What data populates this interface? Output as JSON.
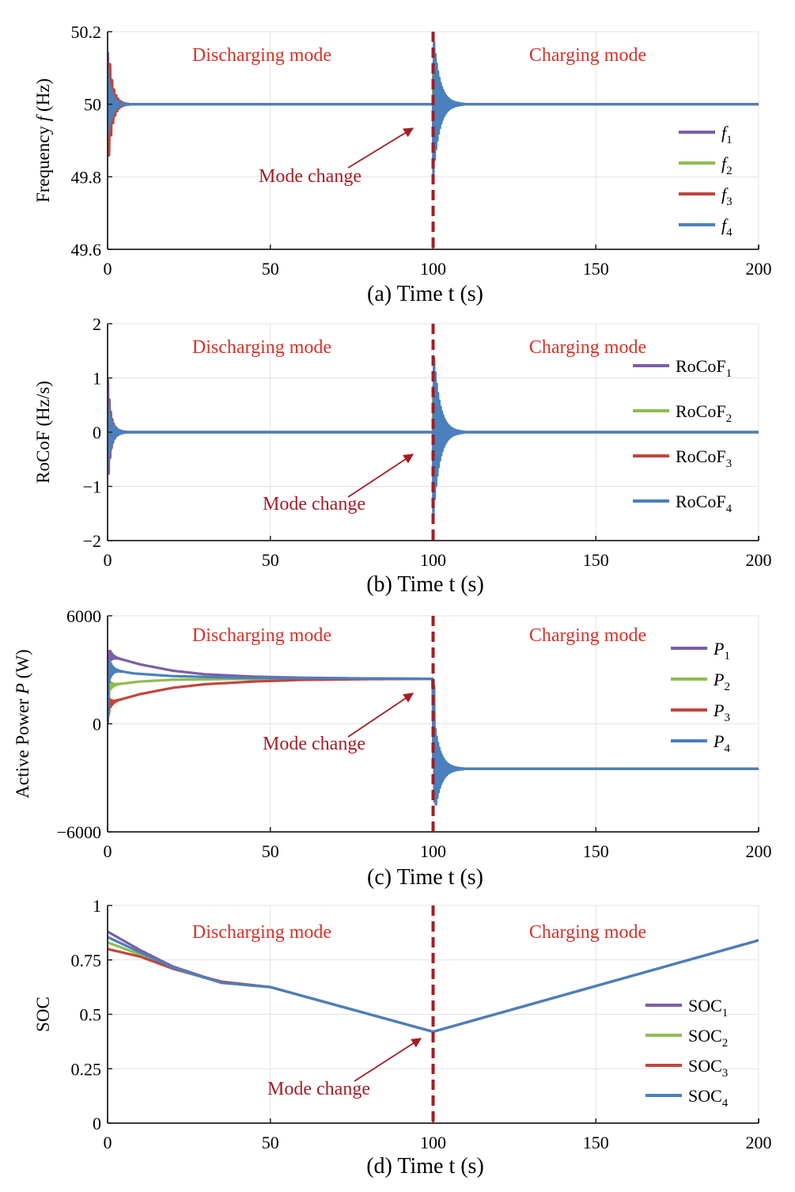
{
  "colors": {
    "series": [
      "#7b5ea7",
      "#8fbb50",
      "#c0463e",
      "#4a80bd"
    ],
    "mode_text": "#d93027",
    "mode_change": "#a51c24",
    "divider": "#a51c24"
  },
  "chart_data": [
    {
      "id": "a",
      "type": "line",
      "title": "",
      "xlabel": "(a) Time t (s)",
      "ylabel": {
        "before": "Frequency ",
        "italic": "f",
        "after": " (Hz)"
      },
      "xlim": [
        0,
        200
      ],
      "ylim": [
        49.6,
        50.2
      ],
      "xticks": [
        0,
        50,
        100,
        150,
        200
      ],
      "xtick_labels": [
        "0",
        "50",
        "100",
        "150",
        "200"
      ],
      "yticks": [
        49.6,
        49.8,
        50,
        50.2
      ],
      "ytick_labels": [
        "49.6",
        "49.8",
        "50",
        "50.2"
      ],
      "grid": true,
      "mode_change_at": 100,
      "annotations": {
        "left": "Discharging mode",
        "right": "Charging mode",
        "arrow": "Mode change"
      },
      "legend": {
        "position": "right",
        "italic": true,
        "entries": [
          {
            "base": "f",
            "sub": "1"
          },
          {
            "base": "f",
            "sub": "2"
          },
          {
            "base": "f",
            "sub": "3"
          },
          {
            "base": "f",
            "sub": "4"
          }
        ]
      },
      "series": [
        {
          "name": "f1",
          "baseline": [
            [
              0,
              50
            ],
            [
              100,
              50
            ],
            [
              200,
              50
            ]
          ],
          "osc": [
            {
              "t0": 0,
              "dur": 3,
              "amp": 0.16,
              "freq": 2.2,
              "phase": 1
            },
            {
              "t0": 100,
              "dur": 5,
              "amp": 0.12,
              "freq": 2.5,
              "phase": 1
            }
          ]
        },
        {
          "name": "f2",
          "baseline": [
            [
              0,
              50
            ],
            [
              100,
              50
            ],
            [
              200,
              50
            ]
          ],
          "osc": [
            {
              "t0": 0,
              "dur": 3,
              "amp": 0.1,
              "freq": 2.0,
              "phase": 1
            },
            {
              "t0": 100,
              "dur": 5,
              "amp": 0.1,
              "freq": 2.5,
              "phase": 1
            }
          ]
        },
        {
          "name": "f3",
          "baseline": [
            [
              0,
              50
            ],
            [
              100,
              50
            ],
            [
              200,
              50
            ]
          ],
          "osc": [
            {
              "t0": 0.3,
              "dur": 4,
              "amp": 0.16,
              "freq": 1.6,
              "phase": -1
            },
            {
              "t0": 100,
              "dur": 5,
              "amp": 0.12,
              "freq": 2.5,
              "phase": -1
            }
          ]
        },
        {
          "name": "f4",
          "baseline": [
            [
              0,
              50
            ],
            [
              100,
              50
            ],
            [
              200,
              50
            ]
          ],
          "osc": [
            {
              "t0": 0,
              "dur": 4,
              "amp": 0.1,
              "freq": 2.6,
              "phase": 1
            },
            {
              "t0": 100,
              "dur": 6,
              "amp": 0.2,
              "freq": 2.5,
              "phase": -1
            }
          ]
        }
      ]
    },
    {
      "id": "b",
      "type": "line",
      "title": "",
      "xlabel": "(b) Time t (s)",
      "ylabel": {
        "before": "RoCoF (Hz/s)",
        "italic": "",
        "after": ""
      },
      "xlim": [
        0,
        200
      ],
      "ylim": [
        -2,
        2
      ],
      "xticks": [
        0,
        50,
        100,
        150,
        200
      ],
      "xtick_labels": [
        "0",
        "50",
        "100",
        "150",
        "200"
      ],
      "yticks": [
        -2,
        -1,
        0,
        1,
        2
      ],
      "ytick_labels": [
        "−2",
        "−1",
        "0",
        "1",
        "2"
      ],
      "grid": true,
      "mode_change_at": 100,
      "annotations": {
        "left": "Discharging mode",
        "right": "Charging mode",
        "arrow": "Mode change"
      },
      "legend": {
        "position": "right",
        "italic": false,
        "entries": [
          {
            "base": "RoCoF",
            "sub": "1"
          },
          {
            "base": "RoCoF",
            "sub": "2"
          },
          {
            "base": "RoCoF",
            "sub": "3"
          },
          {
            "base": "RoCoF",
            "sub": "4"
          }
        ]
      },
      "series": [
        {
          "name": "RoCoF1",
          "baseline": [
            [
              0,
              0
            ],
            [
              100,
              0
            ],
            [
              200,
              0
            ]
          ],
          "osc": [
            {
              "t0": 0,
              "dur": 3,
              "amp": 1.1,
              "freq": 2.2,
              "phase": 1
            },
            {
              "t0": 100,
              "dur": 5,
              "amp": 0.9,
              "freq": 2.5,
              "phase": 1
            }
          ]
        },
        {
          "name": "RoCoF2",
          "baseline": [
            [
              0,
              0
            ],
            [
              100,
              0
            ],
            [
              200,
              0
            ]
          ],
          "osc": [
            {
              "t0": 0,
              "dur": 3,
              "amp": 0.5,
              "freq": 2.0,
              "phase": 1
            },
            {
              "t0": 100,
              "dur": 5,
              "amp": 0.7,
              "freq": 2.5,
              "phase": 1
            }
          ]
        },
        {
          "name": "RoCoF3",
          "baseline": [
            [
              0,
              0
            ],
            [
              100,
              0
            ],
            [
              200,
              0
            ]
          ],
          "osc": [
            {
              "t0": 0.2,
              "dur": 4,
              "amp": 0.6,
              "freq": 1.6,
              "phase": -1
            },
            {
              "t0": 100,
              "dur": 5,
              "amp": 0.8,
              "freq": 2.5,
              "phase": -1
            }
          ]
        },
        {
          "name": "RoCoF4",
          "baseline": [
            [
              0,
              0
            ],
            [
              100,
              0
            ],
            [
              200,
              0
            ]
          ],
          "osc": [
            {
              "t0": 0,
              "dur": 4,
              "amp": 0.6,
              "freq": 2.6,
              "phase": -1
            },
            {
              "t0": 100,
              "dur": 6,
              "amp": 1.6,
              "freq": 2.5,
              "phase": -1
            }
          ]
        }
      ]
    },
    {
      "id": "c",
      "type": "line",
      "title": "",
      "xlabel": "(c) Time t (s)",
      "ylabel": {
        "before": "Active Power ",
        "italic": "P",
        "after": " (W)"
      },
      "xlim": [
        0,
        200
      ],
      "ylim": [
        -6000,
        6000
      ],
      "xticks": [
        0,
        50,
        100,
        150,
        200
      ],
      "xtick_labels": [
        "0",
        "50",
        "100",
        "150",
        "200"
      ],
      "yticks": [
        -6000,
        0,
        6000
      ],
      "ytick_labels": [
        "−6000",
        "0",
        "6000"
      ],
      "grid": true,
      "mode_change_at": 100,
      "annotations": {
        "left": "Discharging mode",
        "right": "Charging mode",
        "arrow": "Mode change"
      },
      "legend": {
        "position": "right",
        "italic": true,
        "entries": [
          {
            "base": "P",
            "sub": "1"
          },
          {
            "base": "P",
            "sub": "2"
          },
          {
            "base": "P",
            "sub": "3"
          },
          {
            "base": "P",
            "sub": "4"
          }
        ]
      },
      "series": [
        {
          "name": "P1",
          "baseline": [
            [
              0,
              0
            ],
            [
              0.5,
              3800
            ],
            [
              2,
              3700
            ],
            [
              10,
              3300
            ],
            [
              20,
              2950
            ],
            [
              30,
              2750
            ],
            [
              45,
              2620
            ],
            [
              60,
              2560
            ],
            [
              80,
              2520
            ],
            [
              99.8,
              2500
            ],
            [
              100.6,
              -2500
            ],
            [
              200,
              -2500
            ]
          ],
          "osc": [
            {
              "t0": 0.3,
              "dur": 3,
              "amp": 500,
              "freq": 2.0,
              "phase": 1
            },
            {
              "t0": 100,
              "dur": 5,
              "amp": 3000,
              "freq": 2.5,
              "phase": -1
            }
          ]
        },
        {
          "name": "P2",
          "baseline": [
            [
              0,
              0
            ],
            [
              0.5,
              2100
            ],
            [
              3,
              2200
            ],
            [
              10,
              2350
            ],
            [
              20,
              2450
            ],
            [
              40,
              2490
            ],
            [
              99.8,
              2500
            ],
            [
              100.6,
              -2500
            ],
            [
              200,
              -2500
            ]
          ],
          "osc": [
            {
              "t0": 0.3,
              "dur": 3,
              "amp": 400,
              "freq": 2.0,
              "phase": -1
            },
            {
              "t0": 100,
              "dur": 5,
              "amp": 2600,
              "freq": 2.5,
              "phase": -1
            }
          ]
        },
        {
          "name": "P3",
          "baseline": [
            [
              0,
              0
            ],
            [
              0.5,
              1100
            ],
            [
              3,
              1300
            ],
            [
              10,
              1650
            ],
            [
              20,
              2000
            ],
            [
              30,
              2200
            ],
            [
              45,
              2350
            ],
            [
              60,
              2440
            ],
            [
              80,
              2480
            ],
            [
              99.8,
              2500
            ],
            [
              100.6,
              -2500
            ],
            [
              200,
              -2500
            ]
          ],
          "osc": [
            {
              "t0": 0.3,
              "dur": 3,
              "amp": 400,
              "freq": 1.8,
              "phase": -1
            },
            {
              "t0": 100,
              "dur": 5,
              "amp": 2800,
              "freq": 2.5,
              "phase": -1
            }
          ]
        },
        {
          "name": "P4",
          "baseline": [
            [
              0,
              0
            ],
            [
              0.5,
              3000
            ],
            [
              3,
              2950
            ],
            [
              8,
              2800
            ],
            [
              20,
              2650
            ],
            [
              40,
              2560
            ],
            [
              99.8,
              2500
            ],
            [
              100.6,
              -2500
            ],
            [
              200,
              -2500
            ]
          ],
          "osc": [
            {
              "t0": 0.2,
              "dur": 3,
              "amp": 900,
              "freq": 2.4,
              "phase": 1
            },
            {
              "t0": 100,
              "dur": 6,
              "amp": 3200,
              "freq": 2.5,
              "phase": -1
            }
          ]
        }
      ]
    },
    {
      "id": "d",
      "type": "line",
      "title": "",
      "xlabel": "(d) Time t (s)",
      "ylabel": {
        "before": "SOC",
        "italic": "",
        "after": ""
      },
      "xlim": [
        0,
        200
      ],
      "ylim": [
        0,
        1
      ],
      "xticks": [
        0,
        50,
        100,
        150,
        200
      ],
      "xtick_labels": [
        "0",
        "50",
        "100",
        "150",
        "200"
      ],
      "yticks": [
        0,
        0.25,
        0.5,
        0.75,
        1
      ],
      "ytick_labels": [
        "0",
        "0.25",
        "0.5",
        "0.75",
        "1"
      ],
      "grid": true,
      "mode_change_at": 100,
      "annotations": {
        "left": "Discharging mode",
        "right": "Charging mode",
        "arrow": "Mode change"
      },
      "legend": {
        "position": "right",
        "italic": false,
        "entries": [
          {
            "base": "SOC",
            "sub": "1"
          },
          {
            "base": "SOC",
            "sub": "2"
          },
          {
            "base": "SOC",
            "sub": "3"
          },
          {
            "base": "SOC",
            "sub": "4"
          }
        ]
      },
      "series": [
        {
          "name": "SOC1",
          "baseline": [
            [
              0,
              0.88
            ],
            [
              10,
              0.795
            ],
            [
              20,
              0.72
            ],
            [
              35,
              0.645
            ],
            [
              50,
              0.625
            ],
            [
              100,
              0.42
            ],
            [
              200,
              0.84
            ]
          ],
          "osc": []
        },
        {
          "name": "SOC2",
          "baseline": [
            [
              0,
              0.83
            ],
            [
              10,
              0.775
            ],
            [
              20,
              0.71
            ],
            [
              35,
              0.645
            ],
            [
              50,
              0.625
            ],
            [
              100,
              0.42
            ],
            [
              200,
              0.84
            ]
          ],
          "osc": []
        },
        {
          "name": "SOC3",
          "baseline": [
            [
              0,
              0.8
            ],
            [
              10,
              0.765
            ],
            [
              20,
              0.71
            ],
            [
              35,
              0.65
            ],
            [
              50,
              0.625
            ],
            [
              100,
              0.42
            ],
            [
              200,
              0.84
            ]
          ],
          "osc": []
        },
        {
          "name": "SOC4",
          "baseline": [
            [
              0,
              0.855
            ],
            [
              10,
              0.785
            ],
            [
              20,
              0.715
            ],
            [
              35,
              0.645
            ],
            [
              50,
              0.625
            ],
            [
              100,
              0.42
            ],
            [
              200,
              0.84
            ]
          ],
          "osc": []
        }
      ]
    }
  ]
}
